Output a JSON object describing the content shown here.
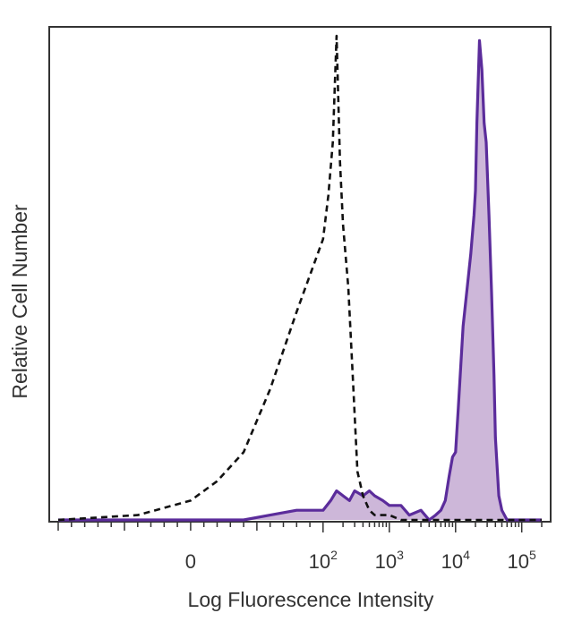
{
  "chart_data": {
    "type": "area",
    "title": "",
    "xlabel": "Log Fluorescence Intensity",
    "ylabel": "Relative Cell Number",
    "x_scale": "biexponential",
    "xlim": [
      -100,
      200000
    ],
    "ylim": [
      0,
      100
    ],
    "grid": false,
    "legend": "none",
    "x_ticks": [
      {
        "value": 0,
        "label": "0",
        "exp": ""
      },
      {
        "value": 100,
        "label": "10",
        "exp": "2"
      },
      {
        "value": 1000,
        "label": "10",
        "exp": "3"
      },
      {
        "value": 10000,
        "label": "10",
        "exp": "4"
      },
      {
        "value": 100000,
        "label": "10",
        "exp": "5"
      }
    ],
    "series": [
      {
        "style": "dashed",
        "color": "#111111",
        "fill": "none",
        "x": [
          -100,
          -40,
          0,
          20,
          40,
          60,
          80,
          100,
          120,
          140,
          160,
          180,
          200,
          240,
          280,
          330,
          400,
          500,
          600,
          800,
          1000,
          1500,
          2000,
          3000,
          5000,
          10000,
          30000,
          100000,
          200000
        ],
        "y": [
          0,
          1,
          4,
          8,
          14,
          27,
          43,
          58,
          67,
          78,
          100,
          74,
          61,
          48,
          30,
          10,
          5,
          2,
          1,
          1,
          1,
          0,
          0,
          0,
          0,
          0,
          0,
          0,
          0
        ]
      },
      {
        "style": "solid",
        "color": "#5b2c9b",
        "fill": "#cdb7d9",
        "x": [
          -100,
          0,
          40,
          60,
          80,
          100,
          130,
          160,
          200,
          250,
          300,
          400,
          500,
          600,
          800,
          1000,
          1500,
          2000,
          3000,
          4000,
          5000,
          6000,
          7000,
          8000,
          9000,
          10000,
          11000,
          13000,
          15000,
          17000,
          19000,
          20000,
          21000,
          23000,
          25000,
          27000,
          29000,
          32000,
          35000,
          38000,
          40000,
          45000,
          50000,
          60000,
          80000,
          100000,
          200000
        ],
        "y": [
          0,
          0,
          0,
          1,
          2,
          2,
          4,
          6,
          5,
          4,
          6,
          5,
          6,
          5,
          4,
          3,
          3,
          1,
          2,
          0,
          1,
          2,
          4,
          9,
          13,
          14,
          23,
          40,
          48,
          55,
          63,
          68,
          82,
          99,
          93,
          82,
          78,
          63,
          47,
          30,
          17,
          5,
          2,
          0,
          0,
          0,
          0
        ]
      }
    ]
  }
}
